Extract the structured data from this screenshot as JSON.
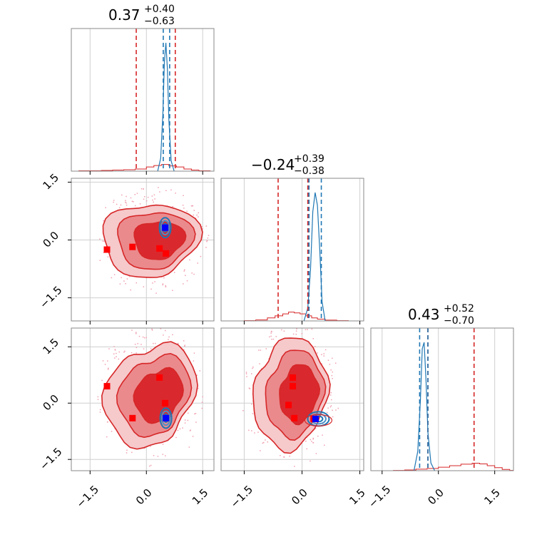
{
  "chart_data": {
    "type": "corner",
    "ticks": [
      -1.5,
      0.0,
      1.5
    ],
    "tick_labels": [
      "−1.5",
      "0.0",
      "1.5"
    ],
    "parameters": [
      {
        "median": "0.37",
        "plus": "+0.40",
        "minus": "−0.63"
      },
      {
        "median": "−0.24",
        "plus": "+0.39",
        "minus": "−0.38"
      },
      {
        "median": "0.43",
        "plus": "+0.52",
        "minus": "−0.70"
      }
    ],
    "ranges": [
      [
        -2.0,
        1.8
      ],
      [
        -2.1,
        1.6
      ],
      [
        -1.8,
        2.0
      ]
    ],
    "series": [
      {
        "color": "#d62728",
        "quantile_lines": [
          [
            -0.27,
            0.77
          ],
          [
            -0.62,
            0.15
          ],
          [
            -0.28,
            0.95
          ]
        ],
        "hist_1d": [
          {
            "x": [
              -1.8,
              -1.5,
              -1.2,
              -0.9,
              -0.6,
              -0.3,
              0.0,
              0.2,
              0.4,
              0.6,
              0.8,
              1.0,
              1.2,
              1.4,
              1.7
            ],
            "y": [
              0.01,
              0.01,
              0.02,
              0.03,
              0.04,
              0.06,
              0.12,
              0.16,
              0.19,
              0.15,
              0.12,
              0.06,
              0.03,
              0.01,
              0.0
            ]
          },
          {
            "x": [
              -1.9,
              -1.5,
              -1.2,
              -0.9,
              -0.7,
              -0.5,
              -0.35,
              -0.2,
              -0.05,
              0.1,
              0.25,
              0.4,
              0.6,
              0.9,
              1.2
            ],
            "y": [
              0.0,
              0.01,
              0.04,
              0.12,
              0.2,
              0.28,
              0.35,
              0.32,
              0.28,
              0.2,
              0.12,
              0.07,
              0.03,
              0.01,
              0.0
            ]
          },
          {
            "x": [
              -1.5,
              -1.2,
              -0.9,
              -0.6,
              -0.3,
              0.0,
              0.3,
              0.6,
              0.9,
              1.1,
              1.3,
              1.5,
              1.7,
              1.9
            ],
            "y": [
              0.0,
              0.01,
              0.03,
              0.06,
              0.09,
              0.14,
              0.2,
              0.26,
              0.3,
              0.27,
              0.2,
              0.12,
              0.05,
              0.01
            ]
          }
        ],
        "markers": [
          [
            [
              -1.05,
              -0.25
            ],
            [
              -0.37,
              -0.18
            ],
            [
              0.35,
              -0.22
            ],
            [
              0.52,
              -0.35
            ],
            [
              0.5,
              0.32
            ]
          ],
          [
            [
              -1.05,
              0.45
            ],
            [
              -0.37,
              -0.4
            ],
            [
              0.35,
              0.68
            ],
            [
              0.52,
              -0.4
            ],
            [
              0.5,
              0.0
            ]
          ],
          [
            [
              -0.24,
              0.45
            ],
            [
              -0.24,
              0.68
            ],
            [
              -0.35,
              -0.05
            ],
            [
              -0.2,
              -0.4
            ],
            [
              0.3,
              -0.42
            ]
          ]
        ]
      },
      {
        "color": "#1f77b4",
        "quantile_lines": [
          [
            0.45,
            0.62
          ],
          [
            0.18,
            0.5
          ],
          [
            -0.5,
            -0.28
          ]
        ],
        "hist_1d": [
          {
            "x": [
              0.3,
              0.38,
              0.44,
              0.48,
              0.52,
              0.56,
              0.6,
              0.66,
              0.74
            ],
            "y": [
              0.0,
              0.1,
              0.45,
              0.85,
              1.0,
              0.8,
              0.4,
              0.08,
              0.0
            ]
          },
          {
            "x": [
              0.05,
              0.15,
              0.22,
              0.28,
              0.34,
              0.4,
              0.46,
              0.52,
              0.6
            ],
            "y": [
              0.0,
              0.1,
              0.4,
              0.85,
              1.0,
              0.9,
              0.55,
              0.15,
              0.0
            ]
          },
          {
            "x": [
              -0.65,
              -0.55,
              -0.48,
              -0.43,
              -0.38,
              -0.33,
              -0.28,
              -0.2,
              -0.1
            ],
            "y": [
              0.0,
              0.15,
              0.55,
              0.95,
              1.0,
              0.7,
              0.3,
              0.06,
              0.0
            ]
          }
        ],
        "markers": [
          [
            0.5,
            0.32
          ],
          [
            0.52,
            -0.4
          ],
          [
            0.35,
            -0.42
          ]
        ]
      }
    ]
  }
}
